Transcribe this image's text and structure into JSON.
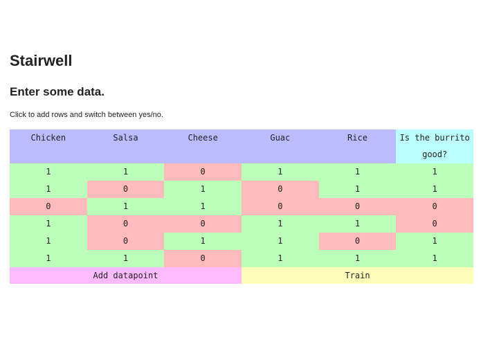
{
  "header": {
    "title": "Stairwell",
    "subtitle": "Enter some data.",
    "instructions": "Click to add rows and switch between yes/no."
  },
  "table": {
    "columns": [
      "Chicken",
      "Salsa",
      "Cheese",
      "Guac",
      "Rice",
      "Is the burrito good?"
    ],
    "rows": [
      [
        1,
        1,
        0,
        1,
        1,
        1
      ],
      [
        1,
        0,
        1,
        0,
        1,
        1
      ],
      [
        0,
        1,
        1,
        0,
        0,
        0
      ],
      [
        1,
        0,
        0,
        1,
        1,
        0
      ],
      [
        1,
        0,
        1,
        1,
        0,
        1
      ],
      [
        1,
        1,
        0,
        1,
        1,
        1
      ]
    ]
  },
  "buttons": {
    "add": "Add datapoint",
    "train": "Train"
  }
}
